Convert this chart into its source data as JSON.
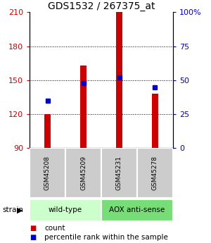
{
  "title": "GDS1532 / 267375_at",
  "samples": [
    "GSM45208",
    "GSM45209",
    "GSM45231",
    "GSM45278"
  ],
  "counts": [
    120,
    163,
    210,
    138
  ],
  "percentiles": [
    35,
    48,
    52,
    45
  ],
  "ymin": 90,
  "ymax": 210,
  "y_ticks": [
    90,
    120,
    150,
    180,
    210
  ],
  "y2_ticks": [
    0,
    25,
    50,
    75,
    100
  ],
  "bar_color": "#cc0000",
  "dot_color": "#0000cc",
  "strain_labels": [
    "wild-type",
    "AOX anti-sense"
  ],
  "strain_colors_light": [
    "#ccffcc",
    "#77dd77"
  ],
  "sample_box_color": "#cccccc",
  "figsize": [
    3.0,
    3.45
  ],
  "dpi": 100
}
